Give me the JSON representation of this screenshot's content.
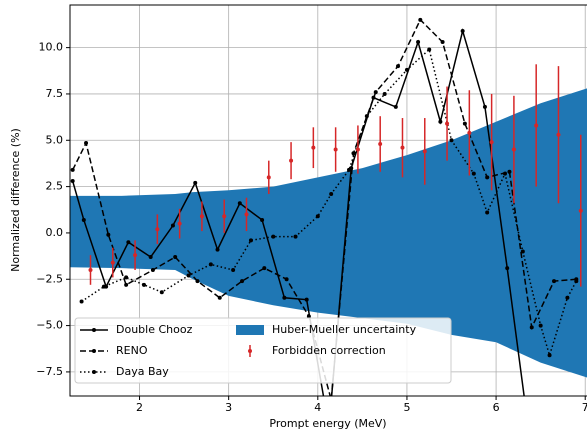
{
  "chart_data": {
    "type": "line",
    "xlabel": "Prompt energy (MeV)",
    "ylabel": "Normalized difference (%)",
    "xlim": [
      1.22,
      7.02
    ],
    "ylim": [
      -8.8,
      12.3
    ],
    "xticks": [
      2,
      3,
      4,
      5,
      6,
      7
    ],
    "yticks": [
      {
        "value": -7.5,
        "label": "−7.5"
      },
      {
        "value": -5,
        "label": "−5.0"
      },
      {
        "value": -2.5,
        "label": "−2.5"
      },
      {
        "value": 0,
        "label": "0.0"
      },
      {
        "value": 2.5,
        "label": "2.5"
      },
      {
        "value": 5,
        "label": "5.0"
      },
      {
        "value": 7.5,
        "label": "7.5"
      },
      {
        "value": 10,
        "label": "10.0"
      }
    ],
    "grid": true,
    "legend": "lower left",
    "series": [
      {
        "name": "Double Chooz",
        "type": "line",
        "linestyle": "solid",
        "color": "#000000",
        "x": [
          1.25,
          1.375,
          1.625,
          1.875,
          2.125,
          2.375,
          2.625,
          2.875,
          3.125,
          3.375,
          3.625,
          3.875,
          4.125,
          4.375,
          4.625,
          4.875,
          5.125,
          5.375,
          5.625,
          5.875,
          6.125,
          6.375
        ],
        "values": [
          2.8,
          0.7,
          -2.9,
          -0.5,
          -1.3,
          0.4,
          2.7,
          -0.9,
          1.6,
          0.7,
          -3.5,
          -3.6,
          -10.5,
          3.5,
          7.3,
          6.8,
          10.3,
          6.0,
          10.9,
          6.8,
          -1.9,
          -11
        ]
      },
      {
        "name": "RENO",
        "type": "line",
        "linestyle": "dashed",
        "color": "#000000",
        "x": [
          1.25,
          1.4,
          1.65,
          1.85,
          2.15,
          2.4,
          2.65,
          2.9,
          3.15,
          3.4,
          3.65,
          3.9,
          4.15,
          4.4,
          4.65,
          4.9,
          5.15,
          5.4,
          5.65,
          5.9,
          6.15,
          6.4,
          6.65,
          6.9
        ],
        "values": [
          3.4,
          4.85,
          -0.1,
          -2.8,
          -2.0,
          -1.3,
          -2.6,
          -3.5,
          -2.6,
          -1.9,
          -2.5,
          -4.5,
          -9,
          4.3,
          7.6,
          9.0,
          11.5,
          10.3,
          5.9,
          3.0,
          3.3,
          -5.1,
          -2.6,
          -2.5
        ]
      },
      {
        "name": "Daya Bay",
        "type": "line",
        "linestyle": "dotted",
        "color": "#000000",
        "x": [
          1.35,
          1.6,
          1.85,
          2.05,
          2.25,
          2.55,
          2.8,
          3.05,
          3.25,
          3.5,
          3.75,
          4.0,
          4.15,
          4.35,
          4.55,
          4.75,
          5.0,
          5.25,
          5.5,
          5.75,
          5.9,
          6.1,
          6.3,
          6.5,
          6.6,
          6.8,
          6.9
        ],
        "values": [
          -3.7,
          -2.9,
          -2.4,
          -2.8,
          -3.2,
          -2.3,
          -1.7,
          -2.0,
          -0.4,
          -0.2,
          -0.2,
          0.9,
          2.1,
          3.4,
          6.3,
          7.5,
          8.8,
          9.9,
          5.0,
          3.2,
          1.1,
          3.2,
          -1.0,
          -5.0,
          -6.6,
          -3.5,
          -2.6
        ]
      },
      {
        "name": "Huber-Mueller uncertainty",
        "type": "band",
        "color": "#1f77b4",
        "x": [
          1.22,
          1.8,
          2.4,
          2.6,
          3.0,
          3.5,
          4.0,
          4.5,
          5.0,
          5.5,
          6.0,
          6.5,
          7.02
        ],
        "upper": [
          2.0,
          2.0,
          2.1,
          2.2,
          2.3,
          2.5,
          3.0,
          3.5,
          4.2,
          5.0,
          6.0,
          7.0,
          7.8
        ],
        "lower": [
          -1.85,
          -1.9,
          -2.0,
          -2.5,
          -3.4,
          -3.9,
          -4.3,
          -4.6,
          -4.9,
          -5.5,
          -5.9,
          -7.0,
          -7.8
        ]
      },
      {
        "name": "Forbidden correction",
        "type": "errorbar",
        "color": "#d62728",
        "x": [
          1.45,
          1.7,
          1.95,
          2.2,
          2.45,
          2.7,
          2.95,
          3.2,
          3.45,
          3.7,
          3.95,
          4.2,
          4.45,
          4.7,
          4.95,
          5.2,
          5.45,
          5.7,
          5.95,
          6.2,
          6.45,
          6.7,
          6.95
        ],
        "values": [
          -2.0,
          -1.6,
          -1.2,
          0.2,
          0.5,
          0.9,
          0.9,
          1.0,
          3.0,
          3.9,
          4.6,
          4.5,
          4.5,
          4.8,
          4.6,
          4.4,
          5.9,
          5.4,
          4.9,
          4.5,
          5.8,
          5.3,
          1.2
        ],
        "errors": [
          0.8,
          0.8,
          0.8,
          0.8,
          0.8,
          0.8,
          0.9,
          0.9,
          0.9,
          1.0,
          1.1,
          1.2,
          1.3,
          1.5,
          1.6,
          1.8,
          2.0,
          2.3,
          2.6,
          2.9,
          3.3,
          3.7,
          4.1
        ]
      }
    ]
  }
}
